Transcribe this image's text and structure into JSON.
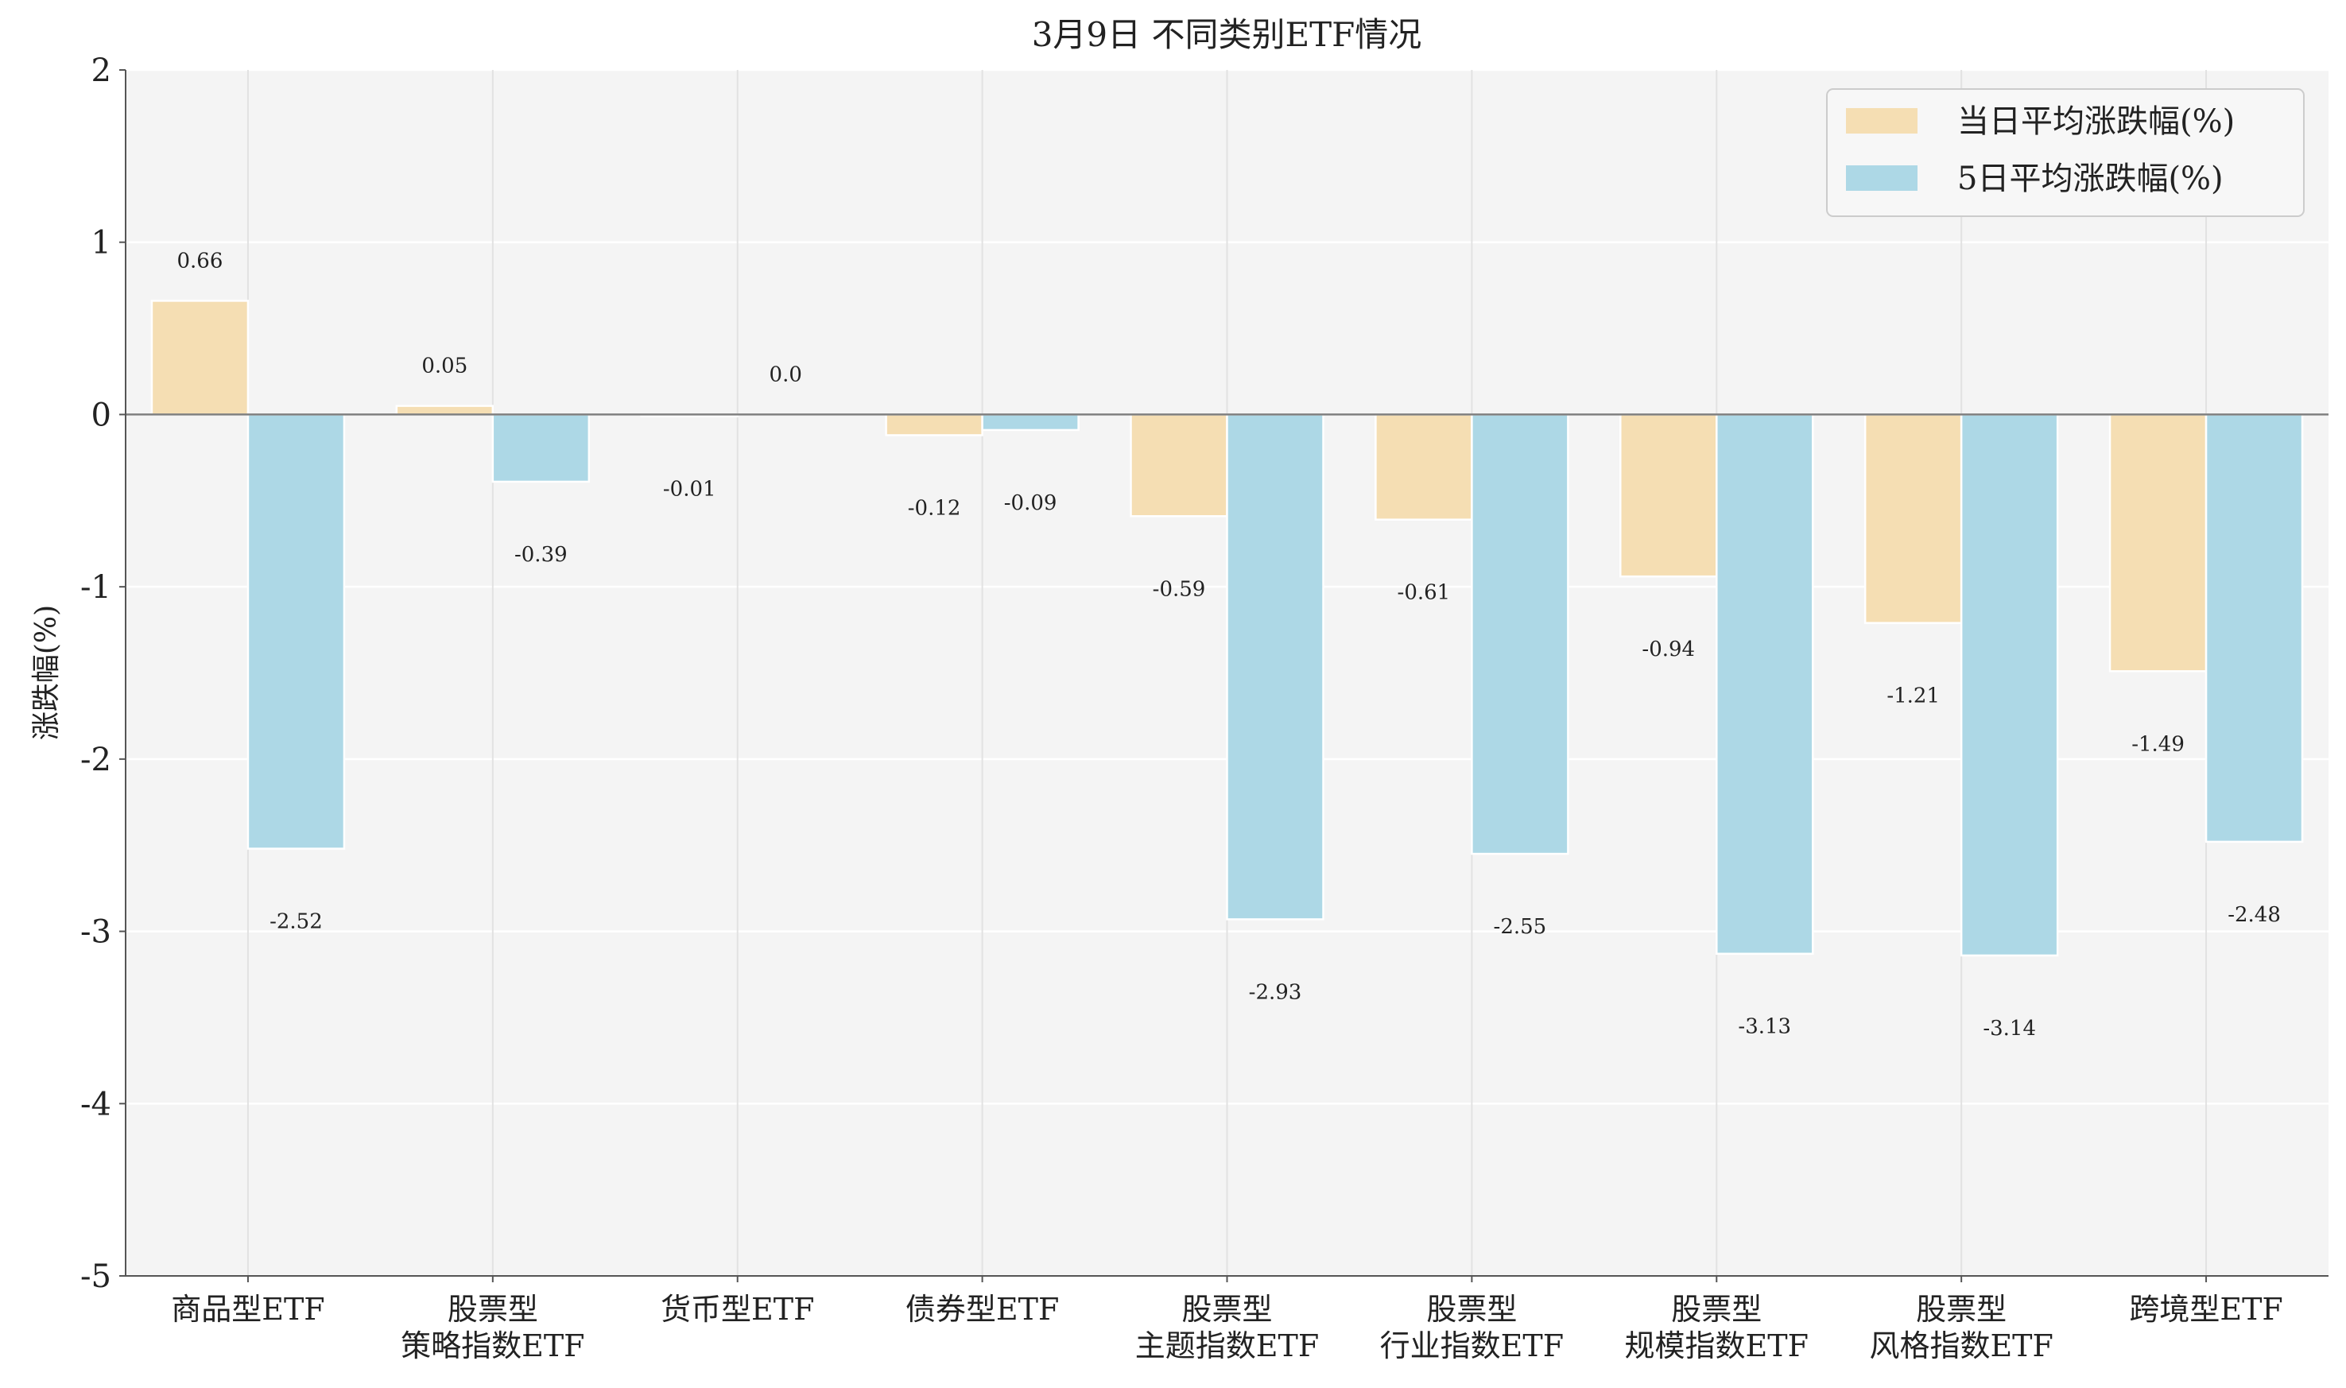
{
  "chart_data": {
    "type": "bar",
    "title": "3月9日 不同类别ETF情况",
    "xlabel": "",
    "ylabel": "涨跌幅(%)",
    "ylim": [
      -5,
      2
    ],
    "yticks": [
      2,
      1,
      0,
      -1,
      -2,
      -3,
      -4,
      -5
    ],
    "grid": true,
    "legend_position": "top-right",
    "categories": [
      [
        "商品型ETF"
      ],
      [
        "股票型",
        "策略指数ETF"
      ],
      [
        "货币型ETF"
      ],
      [
        "债券型ETF"
      ],
      [
        "股票型",
        "主题指数ETF"
      ],
      [
        "股票型",
        "行业指数ETF"
      ],
      [
        "股票型",
        "规模指数ETF"
      ],
      [
        "股票型",
        "风格指数ETF"
      ],
      [
        "跨境型ETF"
      ]
    ],
    "series": [
      {
        "name": "当日平均涨跌幅(%)",
        "color": "#f5deb3",
        "values": [
          0.66,
          0.05,
          -0.01,
          -0.12,
          -0.59,
          -0.61,
          -0.94,
          -1.21,
          -1.49
        ],
        "labels": [
          "0.66",
          "0.05",
          "-0.01",
          "-0.12",
          "-0.59",
          "-0.61",
          "-0.94",
          "-1.21",
          "-1.49"
        ]
      },
      {
        "name": "5日平均涨跌幅(%)",
        "color": "#add8e6",
        "values": [
          -2.52,
          -0.39,
          0.0,
          -0.09,
          -2.93,
          -2.55,
          -3.13,
          -3.14,
          -2.48
        ],
        "labels": [
          "-2.52",
          "-0.39",
          "0.0",
          "-0.09",
          "-2.93",
          "-2.55",
          "-3.13",
          "-3.14",
          "-2.48"
        ]
      }
    ]
  }
}
